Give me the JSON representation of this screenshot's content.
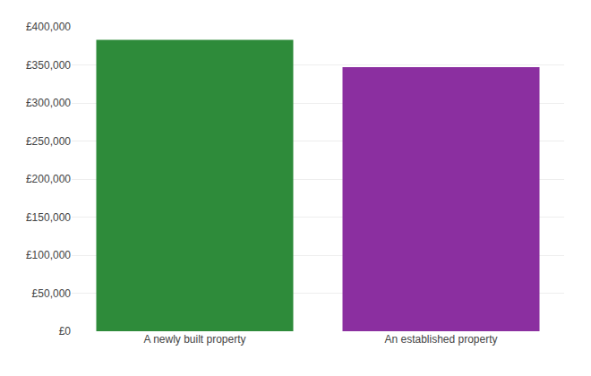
{
  "chart_data": {
    "type": "bar",
    "categories": [
      "A newly built property",
      "An established property"
    ],
    "values": [
      383000,
      347000
    ],
    "colors": [
      "#2e8b3a",
      "#8b2fa0"
    ],
    "ylim": [
      0,
      400000
    ],
    "yticks": [
      {
        "value": 0,
        "label": "£0"
      },
      {
        "value": 50000,
        "label": "£50,000"
      },
      {
        "value": 100000,
        "label": "£100,000"
      },
      {
        "value": 150000,
        "label": "£150,000"
      },
      {
        "value": 200000,
        "label": "£200,000"
      },
      {
        "value": 250000,
        "label": "£250,000"
      },
      {
        "value": 300000,
        "label": "£300,000"
      },
      {
        "value": 350000,
        "label": "£350,000"
      },
      {
        "value": 400000,
        "label": "£400,000"
      }
    ],
    "grid": true
  }
}
